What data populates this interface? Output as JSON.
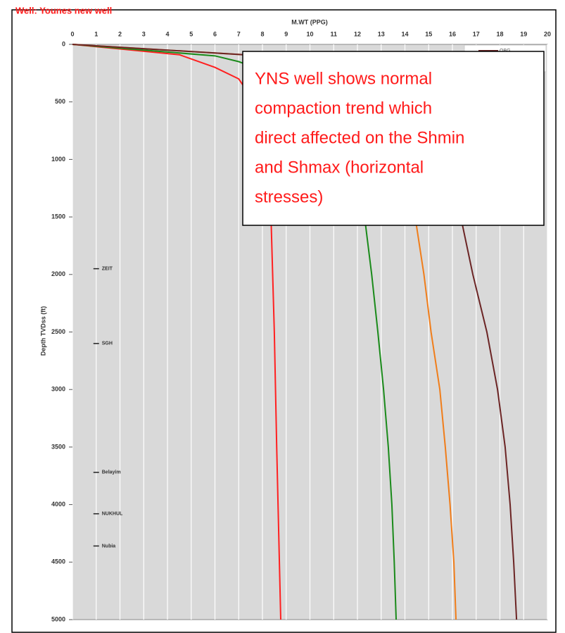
{
  "chart_data": {
    "type": "line",
    "title": "Well: Younes new well",
    "xlabel": "M.WT (PPG)",
    "ylabel": "Depth TVDss (ft)",
    "xlim": [
      0,
      20
    ],
    "xticks": [
      0,
      1,
      2,
      3,
      4,
      5,
      6,
      7,
      8,
      9,
      10,
      11,
      12,
      13,
      14,
      15,
      16,
      17,
      18,
      19,
      20
    ],
    "ylim": [
      0,
      5000
    ],
    "yticks": [
      0,
      500,
      1000,
      1500,
      2000,
      2500,
      3000,
      3500,
      4000,
      4500,
      5000
    ],
    "y_inverted": true,
    "grid": true,
    "series": [
      {
        "color": "#ff2020",
        "x": [
          0,
          2,
          4.5,
          6,
          7,
          7.5,
          8,
          8.3,
          8.36,
          8.5,
          8.6,
          8.77
        ],
        "y": [
          0,
          40,
          90,
          200,
          300,
          450,
          700,
          1100,
          1500,
          2500,
          3500,
          5000
        ]
      },
      {
        "color": "#1a8a1a",
        "x": [
          0,
          6,
          7,
          9,
          10.5,
          11.5,
          12.3,
          12.6,
          12.86,
          13.1,
          13.3,
          13.45,
          13.55,
          13.63
        ],
        "y": [
          0,
          100,
          150,
          300,
          600,
          1000,
          1500,
          2000,
          2500,
          3000,
          3500,
          4000,
          4500,
          5000
        ]
      },
      {
        "color": "#f07d1a",
        "x": [
          0,
          8,
          12,
          13.5,
          14.43,
          14.8,
          15.1,
          15.47,
          15.7,
          15.9,
          16.06,
          16.15
        ],
        "y": [
          0,
          100,
          500,
          1000,
          1500,
          2000,
          2500,
          3000,
          3500,
          4000,
          4500,
          5000
        ]
      },
      {
        "name": "OBG",
        "color": "#6b2424",
        "x": [
          0,
          8,
          13,
          15.5,
          16.35,
          16.86,
          17.45,
          17.9,
          18.22,
          18.43,
          18.58,
          18.7
        ],
        "y": [
          0,
          100,
          500,
          1000,
          1500,
          2000,
          2500,
          3000,
          3500,
          4000,
          4500,
          5000
        ]
      }
    ],
    "formations": [
      {
        "label": "ZEIT",
        "x": 1,
        "depth": 1950
      },
      {
        "label": "SGH",
        "x": 1,
        "depth": 2600
      },
      {
        "label": "Belayim",
        "x": 1,
        "depth": 3720
      },
      {
        "label": "NUKHUL",
        "x": 1,
        "depth": 4080
      },
      {
        "label": "Nubia",
        "x": 1,
        "depth": 4360
      }
    ],
    "annotation": [
      "YNS well shows normal",
      "compaction trend  which",
      "direct affected on the Shmin",
      "and Shmax (horizontal",
      "stresses)"
    ]
  }
}
